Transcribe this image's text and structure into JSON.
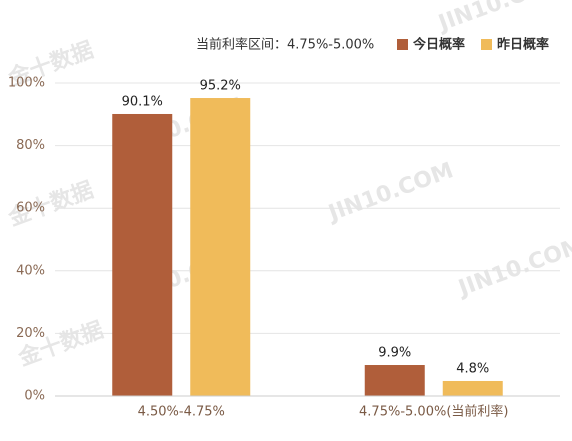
{
  "chart_data": {
    "type": "bar",
    "subtitle": "当前利率区间：4.75%-5.00%",
    "categories": [
      "4.50%-4.75%",
      "4.75%-5.00%(当前利率)"
    ],
    "series": [
      {
        "name": "今日概率",
        "color": "#b05e3a",
        "values": [
          90.1,
          9.9
        ],
        "value_labels": [
          "90.1%",
          "9.9%"
        ]
      },
      {
        "name": "昨日概率",
        "color": "#f0bb5a",
        "values": [
          95.2,
          4.8
        ],
        "value_labels": [
          "95.2%",
          "4.8%"
        ]
      }
    ],
    "ylim": [
      0,
      100
    ],
    "yticks": [
      {
        "value": 0,
        "label": "0%"
      },
      {
        "value": 20,
        "label": "20%"
      },
      {
        "value": 40,
        "label": "40%"
      },
      {
        "value": 60,
        "label": "60%"
      },
      {
        "value": 80,
        "label": "80%"
      },
      {
        "value": 100,
        "label": "100%"
      }
    ],
    "grid": true,
    "legend": "top-right",
    "watermarks": [
      "金十数据",
      "JIN10.COM"
    ]
  }
}
